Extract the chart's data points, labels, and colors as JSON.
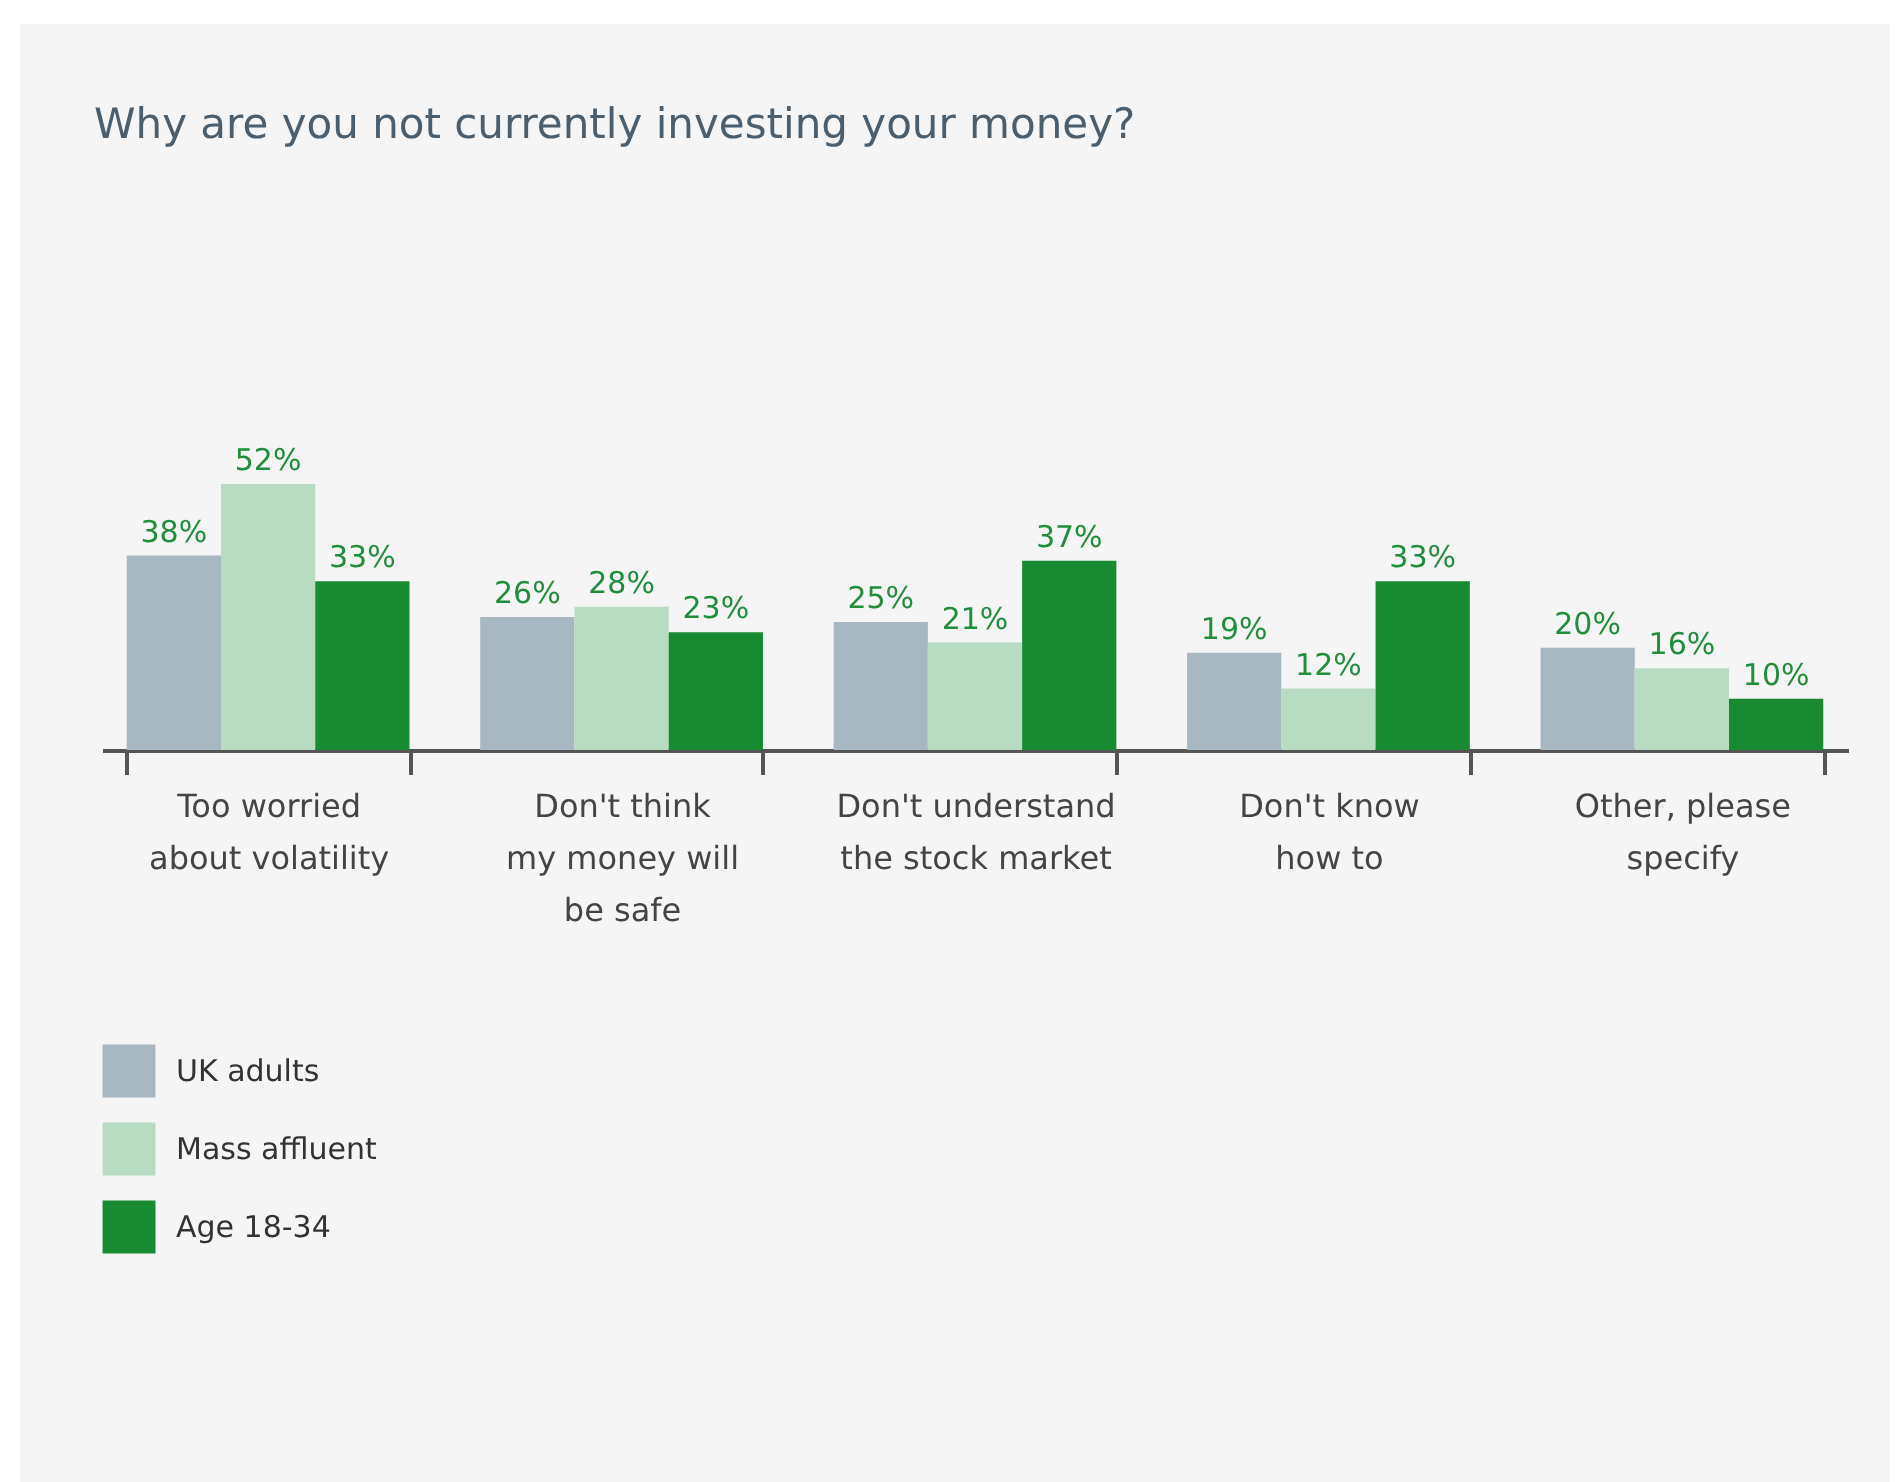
{
  "chart_data": {
    "type": "bar",
    "title": "Why are you not currently investing your money?",
    "categories": [
      "Too worried\nabout volatility",
      "Don't think\nmy money will\nbe safe",
      "Don't understand\nthe stock market",
      "Don't know\nhow to",
      "Other, please\nspecify"
    ],
    "series": [
      {
        "name": "UK adults",
        "color": "#a7b8c2",
        "values": [
          38,
          26,
          25,
          19,
          20
        ],
        "value_labels": [
          "38%",
          "26%",
          "25%",
          "19%",
          "20%"
        ]
      },
      {
        "name": "Mass affluent",
        "color": "#b8dcc1",
        "values": [
          52,
          28,
          21,
          12,
          16
        ],
        "value_labels": [
          "52%",
          "28%",
          "21%",
          "12%",
          "16%"
        ]
      },
      {
        "name": "Age 18-34",
        "color": "#178a32",
        "values": [
          33,
          23,
          37,
          33,
          10
        ],
        "value_labels": [
          "33%",
          "23%",
          "37%",
          "33%",
          "10%"
        ]
      }
    ],
    "legend": "bottom left"
  }
}
